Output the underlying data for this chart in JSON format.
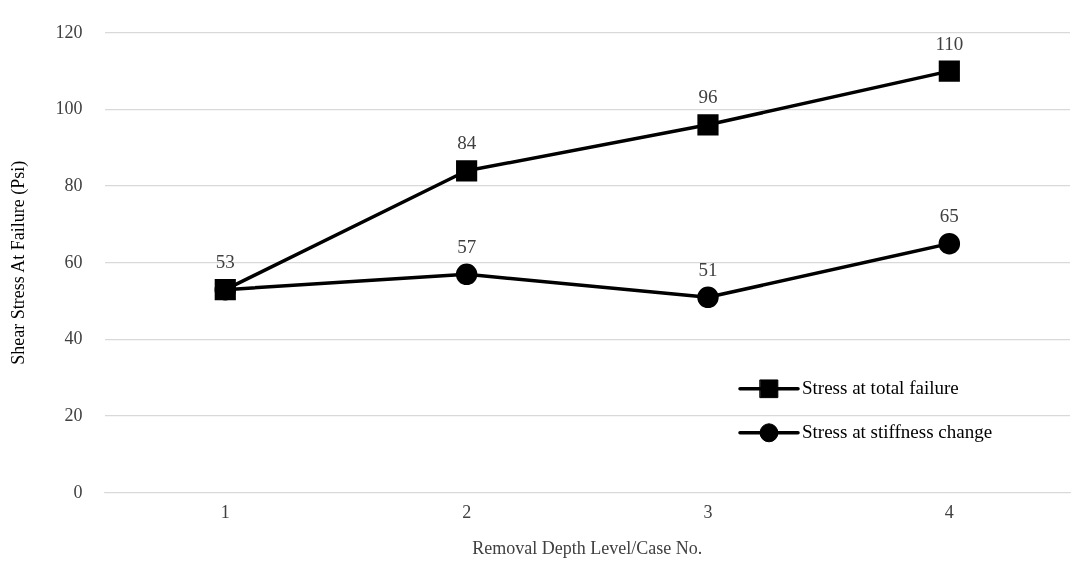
{
  "chart_data": {
    "type": "line",
    "xlabel": "Removal Depth Level/Case No.",
    "ylabel": "Shear Stress At Failure (Psi)",
    "categories": [
      "1",
      "2",
      "3",
      "4"
    ],
    "series": [
      {
        "name": "Stress at total failure",
        "color": "#000000",
        "marker": "square",
        "values": [
          53,
          84,
          96,
          110
        ],
        "value_labels": [
          "53",
          "84",
          "96",
          "110"
        ]
      },
      {
        "name": "Stress at stiffness change",
        "color": "#000000",
        "marker": "circle",
        "values": [
          53,
          57,
          51,
          65
        ],
        "value_labels": [
          null,
          "57",
          "51",
          "65"
        ]
      }
    ],
    "ylim": [
      0,
      120
    ],
    "yticks": [
      0,
      20,
      40,
      60,
      80,
      100,
      120
    ],
    "grid": "y",
    "legend": "bottom right",
    "line_style": "solid"
  }
}
